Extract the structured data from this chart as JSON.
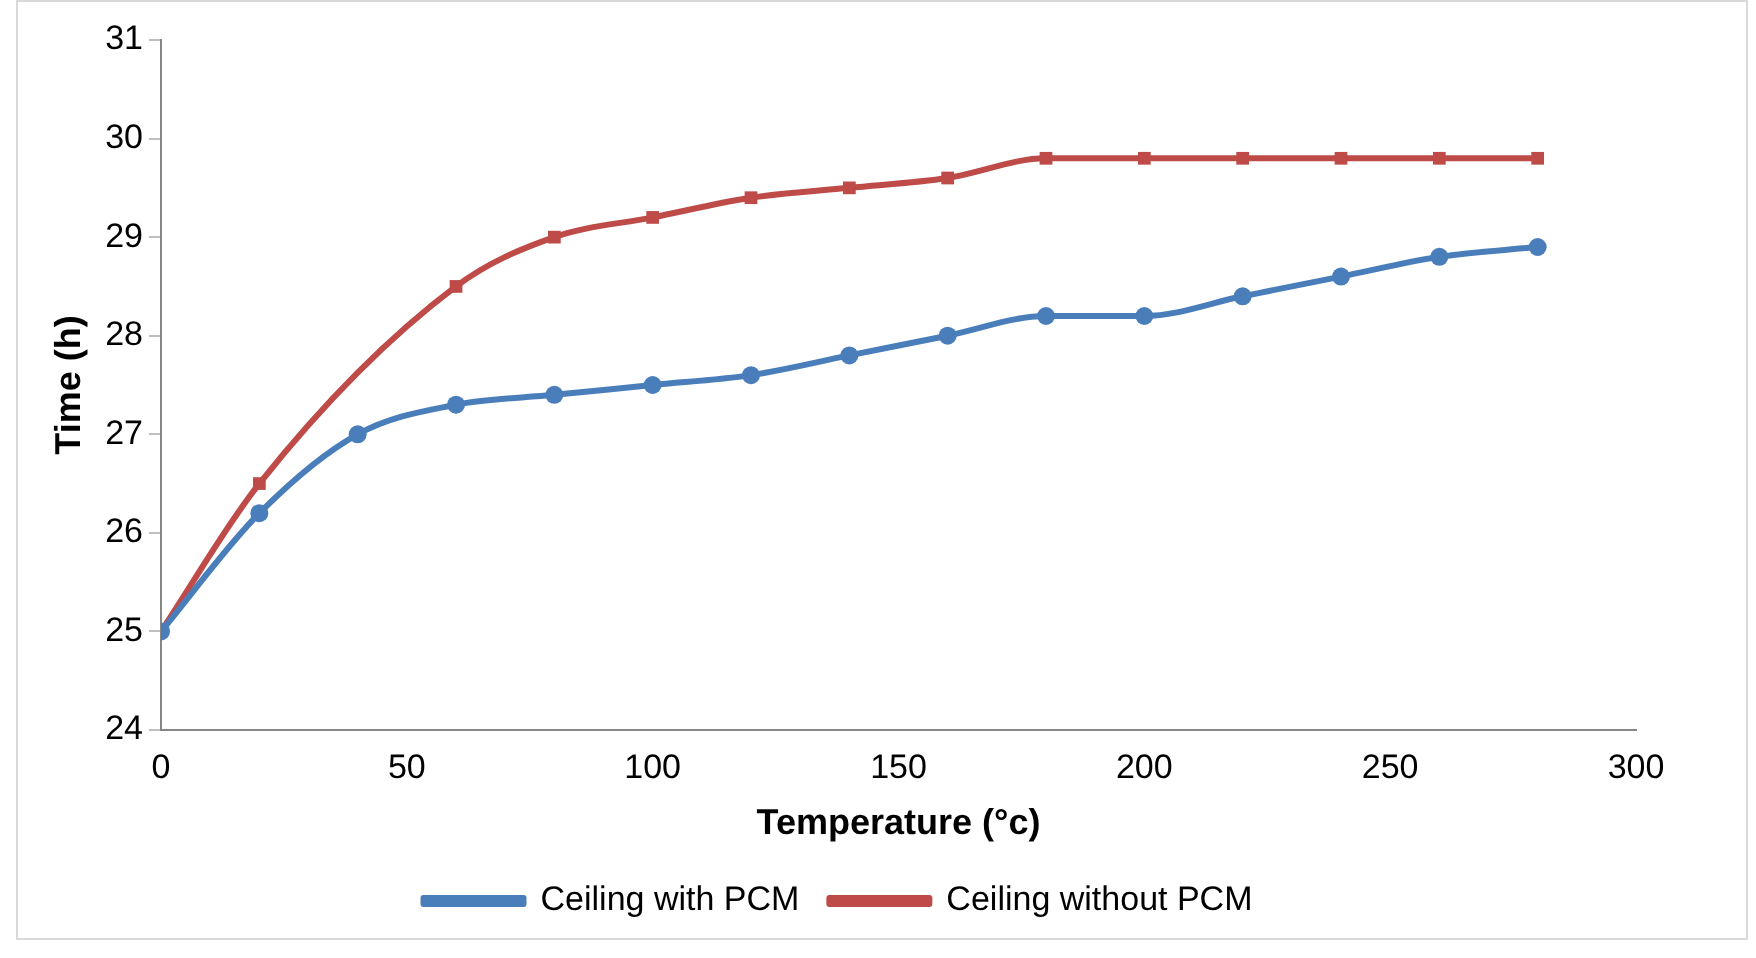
{
  "chart_data": {
    "type": "line",
    "xlabel": "Temperature (°c)",
    "ylabel": "Time (h)",
    "xlim": [
      0,
      300
    ],
    "xticks": [
      0,
      50,
      100,
      150,
      200,
      250,
      300
    ],
    "ylim": [
      24,
      31
    ],
    "yticks": [
      24,
      25,
      26,
      27,
      28,
      29,
      30,
      31
    ],
    "grid": false,
    "legend": "bottom",
    "series": [
      {
        "name": "Ceiling with PCM",
        "color": "#4a7ebb",
        "marker": "circle",
        "x": [
          0,
          20,
          40,
          60,
          80,
          100,
          120,
          140,
          160,
          180,
          200,
          220,
          240,
          260,
          280
        ],
        "values": [
          25,
          26.2,
          27,
          27.3,
          27.4,
          27.5,
          27.6,
          27.8,
          28,
          28.2,
          28.2,
          28.4,
          28.6,
          28.8,
          28.9
        ]
      },
      {
        "name": "Ceiling without PCM",
        "color": "#be4b48",
        "marker": "square",
        "x": [
          0,
          20,
          60,
          80,
          100,
          120,
          140,
          160,
          180,
          200,
          220,
          240,
          260,
          280
        ],
        "values": [
          25,
          26.5,
          28.5,
          29,
          29.2,
          29.4,
          29.5,
          29.6,
          29.8,
          29.8,
          29.8,
          29.8,
          29.8,
          29.8
        ]
      }
    ]
  }
}
